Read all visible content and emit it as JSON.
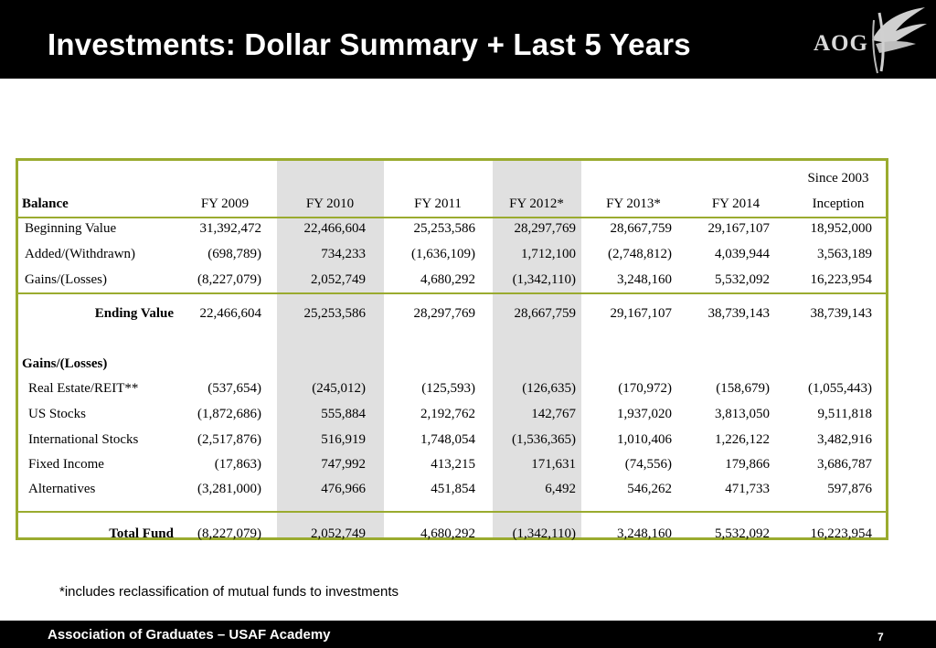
{
  "slide": {
    "title": "Investments:  Dollar Summary + Last 5 Years",
    "logo_text": "AOG",
    "footnote": "*includes reclassification of mutual funds to investments",
    "footer": "Association of Graduates – USAF Academy",
    "page_number": "7"
  },
  "colors": {
    "border": "#9aab2f",
    "shade": "#e0e0e0",
    "header_bg": "#000000"
  },
  "table": {
    "header_top": [
      "",
      "",
      "",
      "",
      "",
      "",
      "",
      "Since 2003"
    ],
    "header": [
      "Balance",
      "FY 2009",
      "FY 2010",
      "FY 2011",
      "FY 2012*",
      "FY 2013*",
      "FY 2014",
      "Inception"
    ],
    "balance_rows": [
      [
        "Beginning Value",
        "31,392,472",
        "22,466,604",
        "25,253,586",
        "28,297,769",
        "28,667,759",
        "29,167,107",
        "18,952,000"
      ],
      [
        "Added/(Withdrawn)",
        "(698,789)",
        "734,233",
        "(1,636,109)",
        "1,712,100",
        "(2,748,812)",
        "4,039,944",
        "3,563,189"
      ],
      [
        "Gains/(Losses)",
        "(8,227,079)",
        "2,052,749",
        "4,680,292",
        "(1,342,110)",
        "3,248,160",
        "5,532,092",
        "16,223,954"
      ]
    ],
    "ending_row": [
      "Ending Value",
      "22,466,604",
      "25,253,586",
      "28,297,769",
      "28,667,759",
      "29,167,107",
      "38,739,143",
      "38,739,143"
    ],
    "gains_title": "Gains/(Losses)",
    "gains_rows": [
      [
        "Real Estate/REIT**",
        "(537,654)",
        "(245,012)",
        "(125,593)",
        "(126,635)",
        "(170,972)",
        "(158,679)",
        "(1,055,443)"
      ],
      [
        "US Stocks",
        "(1,872,686)",
        "555,884",
        "2,192,762",
        "142,767",
        "1,937,020",
        "3,813,050",
        "9,511,818"
      ],
      [
        "International Stocks",
        "(2,517,876)",
        "516,919",
        "1,748,054",
        "(1,536,365)",
        "1,010,406",
        "1,226,122",
        "3,482,916"
      ],
      [
        "Fixed Income",
        "(17,863)",
        "747,992",
        "413,215",
        "171,631",
        "(74,556)",
        "179,866",
        "3,686,787"
      ],
      [
        "Alternatives",
        "(3,281,000)",
        "476,966",
        "451,854",
        "6,492",
        "546,262",
        "471,733",
        "597,876"
      ]
    ],
    "total_row": [
      "Total Fund",
      "(8,227,079)",
      "2,052,749",
      "4,680,292",
      "(1,342,110)",
      "3,248,160",
      "5,532,092",
      "16,223,954"
    ]
  }
}
